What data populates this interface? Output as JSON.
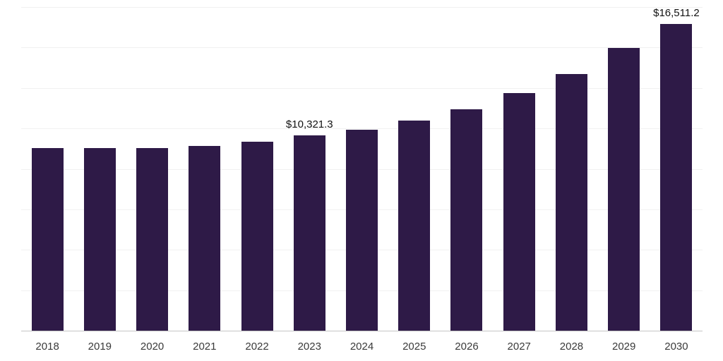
{
  "chart_data": {
    "type": "bar",
    "title": "",
    "xlabel": "",
    "ylabel": "",
    "categories": [
      "2018",
      "2019",
      "2020",
      "2021",
      "2022",
      "2023",
      "2024",
      "2025",
      "2026",
      "2027",
      "2028",
      "2029",
      "2030"
    ],
    "values": [
      9650,
      9650,
      9650,
      9760,
      9990,
      10321.3,
      10620,
      11100,
      11700,
      12550,
      13550,
      14930,
      16511.2
    ],
    "labeled_points": [
      {
        "index": 5,
        "label": "$10,321.3"
      },
      {
        "index": 12,
        "label": "$16,511.2"
      }
    ],
    "ylim": [
      0,
      17100
    ],
    "grid": "horizontal",
    "grid_intervals": 8,
    "legend": "none",
    "bar_color": "#2e1a47",
    "grid_color": "#f1f1f1",
    "axis_color": "#c4c4c4"
  }
}
